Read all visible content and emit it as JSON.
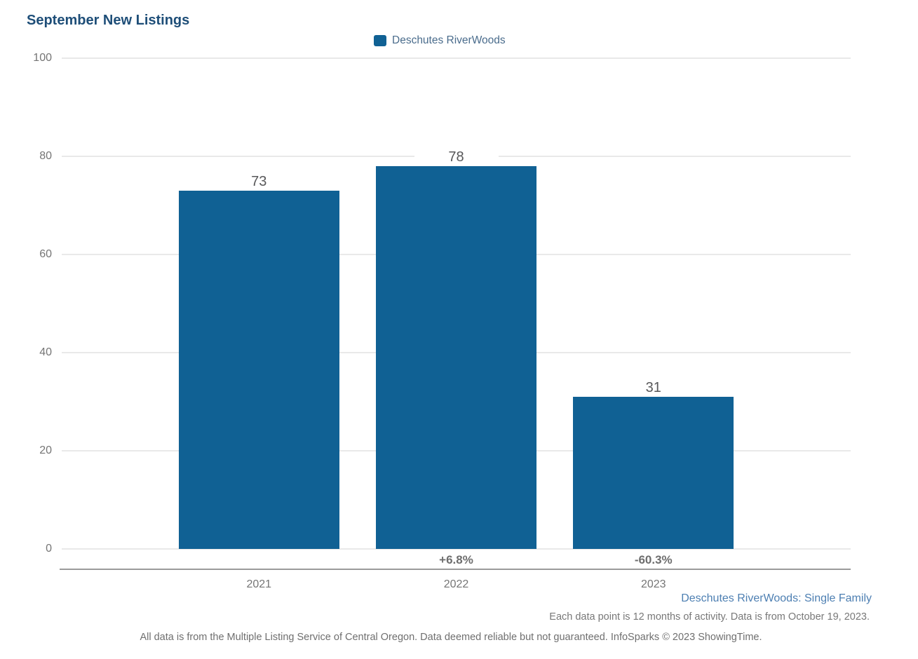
{
  "title": "September New Listings",
  "legend": {
    "label": "Deschutes RiverWoods"
  },
  "chart_data": {
    "type": "bar",
    "title": "September New Listings",
    "categories": [
      "2021",
      "2022",
      "2023"
    ],
    "series": [
      {
        "name": "Deschutes RiverWoods",
        "values": [
          73,
          78,
          31
        ]
      }
    ],
    "value_labels": [
      "73",
      "78",
      "31"
    ],
    "pct_change_labels": [
      "",
      "+6.8%",
      "-60.3%"
    ],
    "y_ticks": [
      0,
      20,
      40,
      60,
      80,
      100
    ],
    "ylim": [
      0,
      100
    ],
    "xlabel": "",
    "ylabel": "",
    "grid": true,
    "legend_position": "top",
    "bar_color": "#106194"
  },
  "colors": {
    "bar": "#106194",
    "title": "#1e4e78",
    "footer_link_blue": "#4d7fb2",
    "gridline": "#e9e9e9",
    "axis_line": "#9b9b9b"
  },
  "footer": {
    "segment_label": "Deschutes RiverWoods: Single Family",
    "data_note": "Each data point is 12 months of activity. Data is from October 19, 2023.",
    "disclaimer": "All data is from the Multiple Listing Service of Central Oregon. Data deemed reliable but not guaranteed. InfoSparks © 2023 ShowingTime."
  }
}
